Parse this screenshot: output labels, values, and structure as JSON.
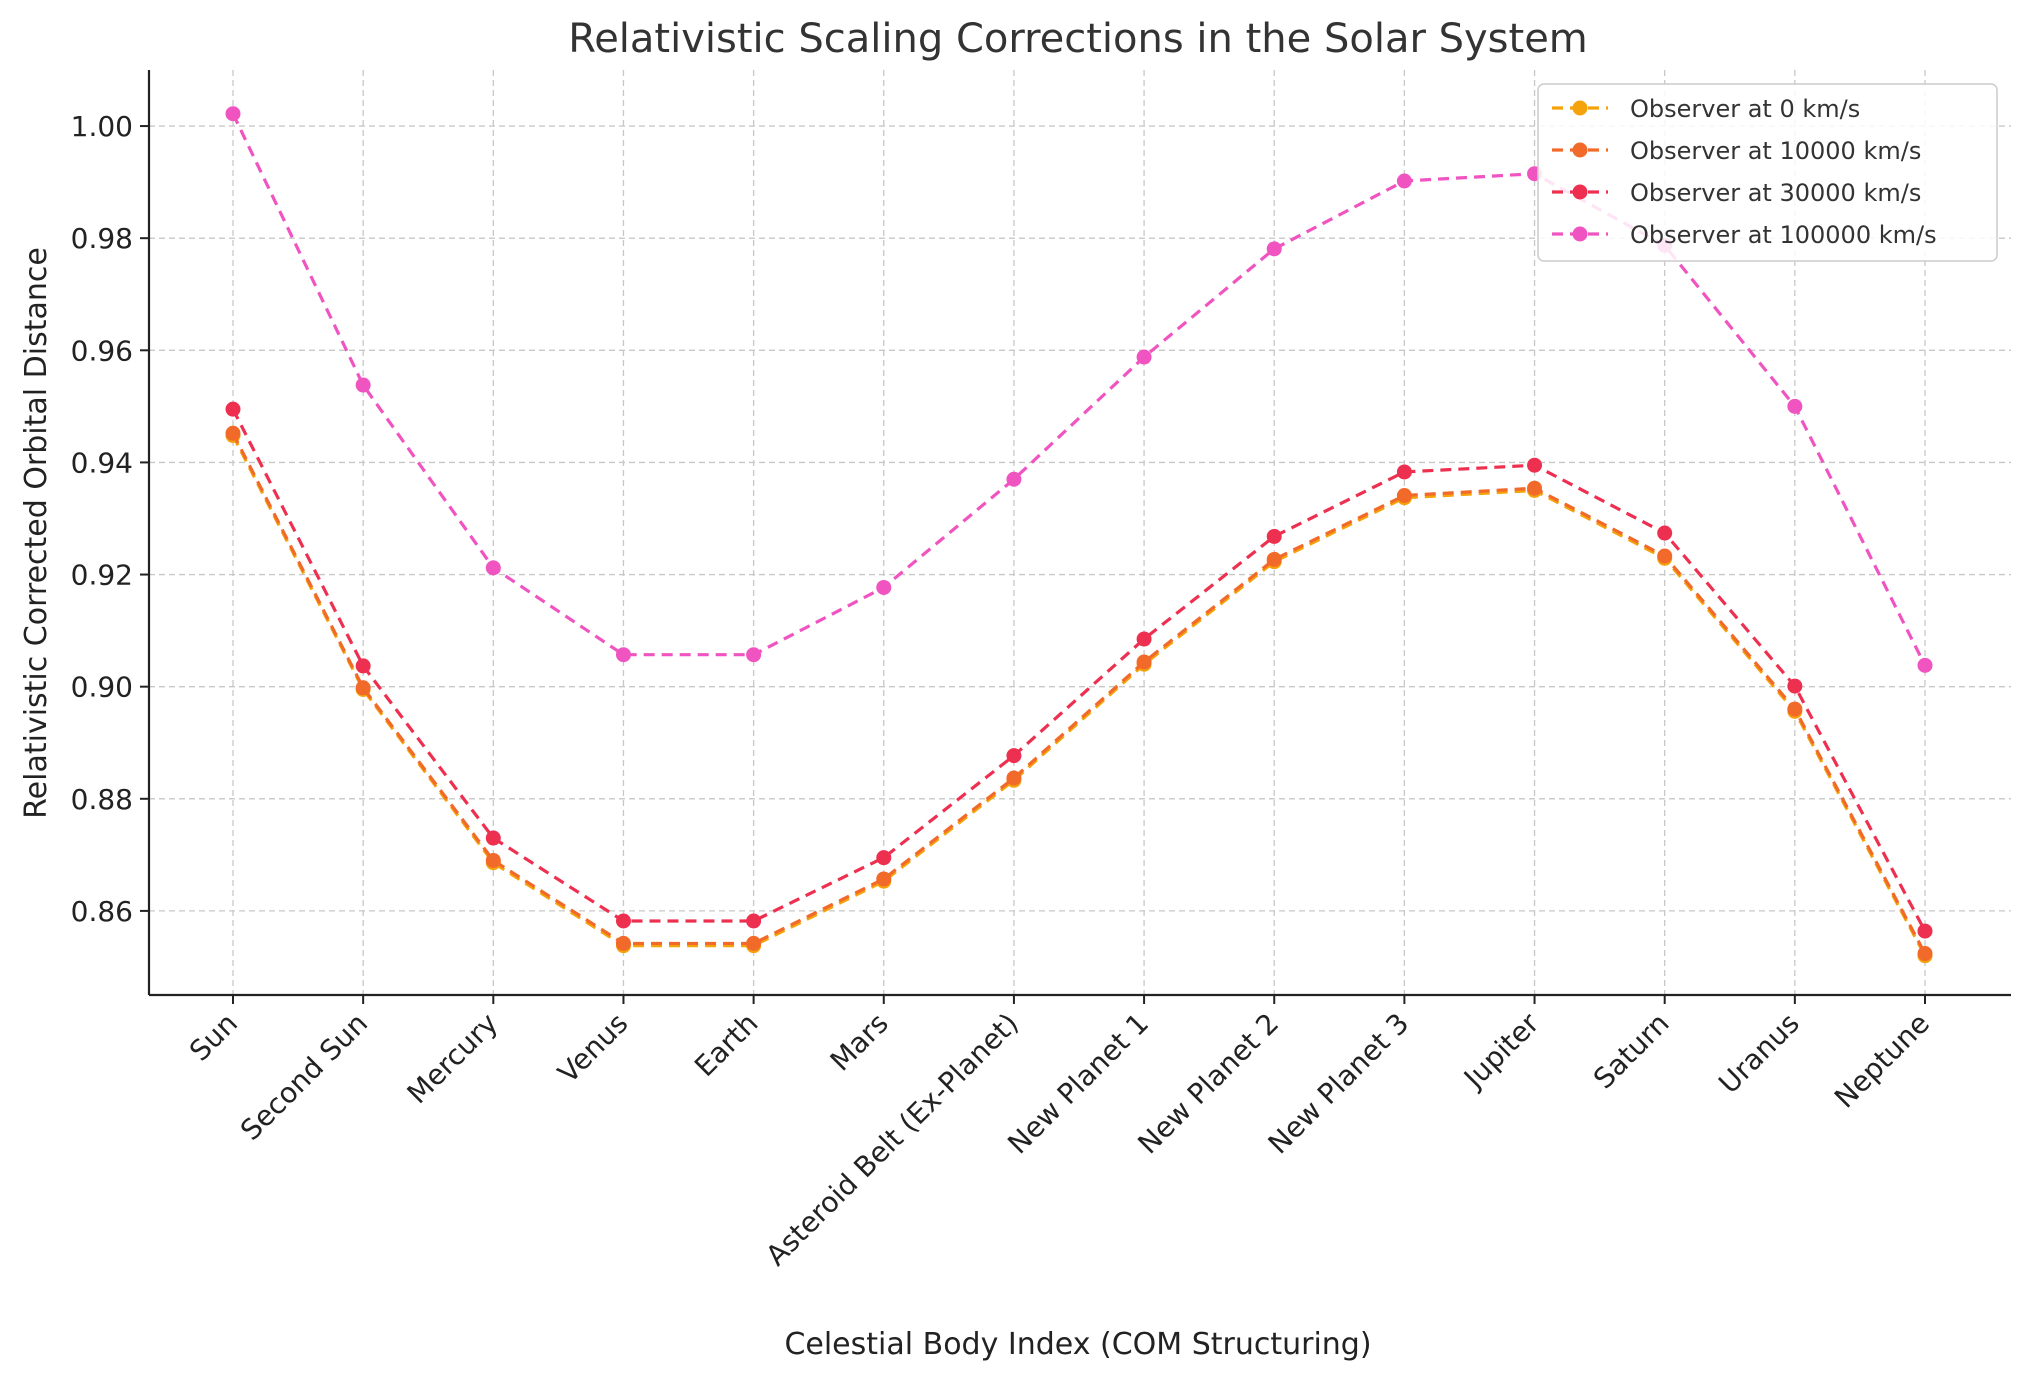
{
  "chart_data": {
    "type": "line",
    "title": "Relativistic Scaling Corrections in the Solar System",
    "xlabel": "Celestial Body Index (COM Structuring)",
    "ylabel": "Relativistic Corrected Orbital Distance",
    "categories": [
      "Sun",
      "Second Sun",
      "Mercury",
      "Venus",
      "Earth",
      "Mars",
      "Asteroid Belt (Ex-Planet)",
      "New Planet 1",
      "New Planet 2",
      "New Planet 3",
      "Jupiter",
      "Saturn",
      "Uranus",
      "Neptune"
    ],
    "ylim": [
      0.845,
      1.01
    ],
    "yticks": [
      0.86,
      0.88,
      0.9,
      0.92,
      0.94,
      0.96,
      0.98,
      1.0
    ],
    "ytick_labels": [
      "0.86",
      "0.88",
      "0.90",
      "0.92",
      "0.94",
      "0.96",
      "0.98",
      "1.00"
    ],
    "grid": true,
    "legend_position": "top-right",
    "series": [
      {
        "name": "Observer at 0 km/s",
        "color": "#f5a30a",
        "values": [
          0.9448,
          0.8995,
          0.8686,
          0.8538,
          0.8538,
          0.8653,
          0.8833,
          0.904,
          0.9223,
          0.9337,
          0.935,
          0.9229,
          0.8956,
          0.852
        ]
      },
      {
        "name": "Observer at 10000 km/s",
        "color": "#f26a2a",
        "values": [
          0.9452,
          0.8998,
          0.869,
          0.8542,
          0.8542,
          0.8657,
          0.8837,
          0.9044,
          0.9227,
          0.9341,
          0.9354,
          0.9233,
          0.896,
          0.8524
        ]
      },
      {
        "name": "Observer at 30000 km/s",
        "color": "#ee3050",
        "values": [
          0.9495,
          0.9037,
          0.873,
          0.8582,
          0.8582,
          0.8695,
          0.8877,
          0.9085,
          0.9268,
          0.9383,
          0.9395,
          0.9274,
          0.9001,
          0.8564
        ]
      },
      {
        "name": "Observer at 100000 km/s",
        "color": "#f054c0",
        "values": [
          1.0022,
          0.9538,
          0.9212,
          0.9057,
          0.9057,
          0.9177,
          0.937,
          0.9588,
          0.9781,
          0.9902,
          0.9915,
          0.9787,
          0.95,
          0.9038
        ]
      }
    ]
  }
}
